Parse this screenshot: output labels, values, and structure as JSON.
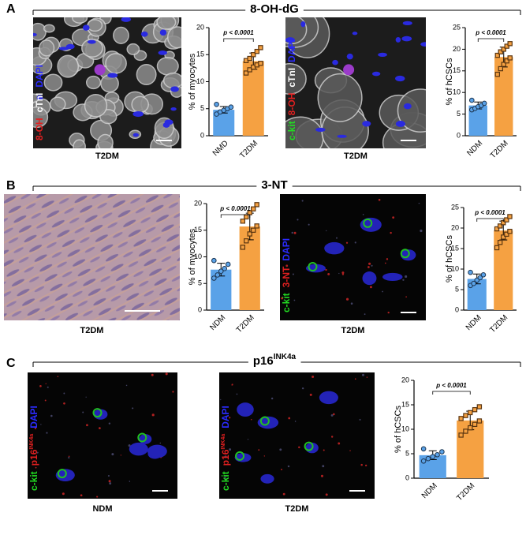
{
  "panels": [
    {
      "label": "A",
      "title": "8-OH-dG",
      "images": [
        {
          "caption": "T2DM",
          "stains": [
            {
              "text": "8-OH",
              "color": "#e02020"
            },
            {
              "text": "cTnI",
              "color": "#ffffff"
            },
            {
              "text": "DAPI",
              "color": "#2b2bff"
            }
          ]
        },
        {
          "caption": "T2DM",
          "stains": [
            {
              "text": "c-kit",
              "color": "#22dd22"
            },
            {
              "text": "8-OH",
              "color": "#e02020"
            },
            {
              "text": "cTnI",
              "color": "#ffffff"
            },
            {
              "text": "DAPI",
              "color": "#2b2bff"
            }
          ]
        }
      ]
    },
    {
      "label": "B",
      "title": "3-NT",
      "images": [
        {
          "caption": "T2DM",
          "stains": []
        },
        {
          "caption": "T2DM",
          "stains": [
            {
              "text": "c-kit",
              "color": "#22dd22"
            },
            {
              "text": "3-NT",
              "color": "#e02020"
            },
            {
              "text": "DAPI",
              "color": "#2b2bff"
            }
          ]
        }
      ]
    },
    {
      "label": "C",
      "title": "p16",
      "title_sup": "INK4a",
      "images": [
        {
          "caption": "NDM",
          "stains": [
            {
              "text": "c-kit",
              "color": "#22dd22"
            },
            {
              "text": "p16",
              "sup": "INK4a",
              "color": "#e02020"
            },
            {
              "text": "DAPI",
              "color": "#2b2bff"
            }
          ]
        },
        {
          "caption": "T2DM",
          "stains": [
            {
              "text": "c-kit",
              "color": "#22dd22"
            },
            {
              "text": "p16",
              "sup": "INK4a",
              "color": "#e02020"
            },
            {
              "text": "DAPI",
              "color": "#2b2bff"
            }
          ]
        }
      ]
    }
  ],
  "chart_data": [
    {
      "type": "bar",
      "ylabel": "% of myocytes",
      "categories": [
        "NMD",
        "T2DM"
      ],
      "values": [
        4.8,
        13.8
      ],
      "errors": [
        0.6,
        1.5
      ],
      "points": [
        [
          4.0,
          4.4,
          4.7,
          5.0,
          5.3,
          5.8
        ],
        [
          11.6,
          12.2,
          12.7,
          13.1,
          13.4,
          13.9,
          14.3,
          15.0,
          15.6,
          16.3
        ]
      ],
      "colors": [
        "#5aa2e8",
        "#f5a142"
      ],
      "ylim": [
        0,
        20
      ],
      "yticks": [
        0,
        5,
        10,
        15,
        20
      ],
      "annotation": "p < 0.0001"
    },
    {
      "type": "bar",
      "ylabel": "% of hCSCs",
      "categories": [
        "NDM",
        "T2DM"
      ],
      "values": [
        7.0,
        18.2
      ],
      "errors": [
        0.8,
        2.3
      ],
      "points": [
        [
          6.0,
          6.3,
          6.7,
          7.0,
          7.5,
          8.2
        ],
        [
          14.2,
          15.5,
          16.5,
          17.3,
          18.0,
          18.6,
          19.4,
          20.0,
          20.7,
          21.3
        ]
      ],
      "colors": [
        "#5aa2e8",
        "#f5a142"
      ],
      "ylim": [
        0,
        25
      ],
      "yticks": [
        0,
        5,
        10,
        15,
        20,
        25
      ],
      "annotation": "p < 0.0001"
    },
    {
      "type": "bar",
      "ylabel": "% of myocytes",
      "categories": [
        "NDM",
        "T2DM"
      ],
      "values": [
        7.6,
        15.7
      ],
      "errors": [
        1.2,
        2.5
      ],
      "points": [
        [
          6.0,
          6.6,
          7.3,
          7.8,
          8.6,
          9.3
        ],
        [
          11.8,
          13.0,
          14.3,
          15.0,
          15.8,
          16.7,
          17.5,
          18.3,
          19.0,
          19.8
        ]
      ],
      "colors": [
        "#5aa2e8",
        "#f5a142"
      ],
      "ylim": [
        0,
        20
      ],
      "yticks": [
        0,
        5,
        10,
        15,
        20
      ],
      "annotation": "p < 0.0001"
    },
    {
      "type": "bar",
      "ylabel": "% of hCSCs",
      "categories": [
        "NDM",
        "T2DM"
      ],
      "values": [
        7.6,
        19.4
      ],
      "errors": [
        1.2,
        2.3
      ],
      "points": [
        [
          6.0,
          6.5,
          7.3,
          7.9,
          8.6,
          9.2
        ],
        [
          15.2,
          16.5,
          17.8,
          18.5,
          19.2,
          19.8,
          20.5,
          21.3,
          22.0,
          22.8
        ]
      ],
      "colors": [
        "#5aa2e8",
        "#f5a142"
      ],
      "ylim": [
        0,
        25
      ],
      "yticks": [
        0,
        5,
        10,
        15,
        20,
        25
      ],
      "annotation": "p < 0.0001"
    },
    {
      "type": "bar",
      "ylabel": "% of  hCSCs",
      "categories": [
        "NDM",
        "T2DM"
      ],
      "values": [
        4.7,
        11.8
      ],
      "errors": [
        0.9,
        1.9
      ],
      "points": [
        [
          3.5,
          4.0,
          4.4,
          4.8,
          5.4,
          6.0
        ],
        [
          8.8,
          9.6,
          10.3,
          11.0,
          11.7,
          12.2,
          12.8,
          13.4,
          14.0,
          14.6
        ]
      ],
      "colors": [
        "#5aa2e8",
        "#f5a142"
      ],
      "ylim": [
        0,
        20
      ],
      "yticks": [
        0,
        5,
        10,
        15,
        20
      ],
      "annotation": "p < 0.0001"
    }
  ]
}
